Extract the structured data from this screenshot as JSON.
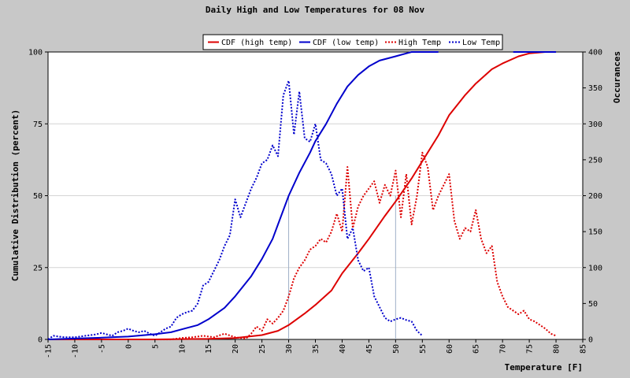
{
  "chart_data": {
    "type": "line",
    "title": "Daily High and Low Temperatures for 08 Nov",
    "xlabel": "Temperature [F]",
    "ylabel_left": "Cumulative Distribution (percent)",
    "ylabel_right": "Occurances",
    "xlim": [
      -15,
      85
    ],
    "ylim_left": [
      0,
      100
    ],
    "ylim_right": [
      0,
      400
    ],
    "x_ticks": [
      "-15",
      "-10",
      "-5",
      "0",
      "5",
      "10",
      "15",
      "20",
      "25",
      "30",
      "35",
      "40",
      "45",
      "50",
      "55",
      "60",
      "65",
      "70",
      "75",
      "80",
      "85"
    ],
    "y_ticks_left": [
      "0",
      "25",
      "50",
      "75",
      "100"
    ],
    "y_ticks_right": [
      "0",
      "50",
      "100",
      "150",
      "200",
      "250",
      "300",
      "350",
      "400"
    ],
    "grid": true,
    "legend_position": "top",
    "markers": [
      {
        "x": 30,
        "y": 50
      },
      {
        "x": 50,
        "y": 50
      }
    ],
    "series": [
      {
        "name": "CDF (high temp)",
        "axis": "left",
        "color": "#dd0000",
        "style": "solid",
        "points": [
          [
            -15,
            0
          ],
          [
            5,
            0
          ],
          [
            15,
            0.2
          ],
          [
            20,
            0.5
          ],
          [
            25,
            1.5
          ],
          [
            28,
            3
          ],
          [
            30,
            5
          ],
          [
            33,
            9
          ],
          [
            35,
            12
          ],
          [
            38,
            17
          ],
          [
            40,
            23
          ],
          [
            43,
            30
          ],
          [
            45,
            35
          ],
          [
            48,
            43
          ],
          [
            50,
            48
          ],
          [
            53,
            56
          ],
          [
            55,
            62
          ],
          [
            58,
            71
          ],
          [
            60,
            78
          ],
          [
            63,
            85
          ],
          [
            65,
            89
          ],
          [
            68,
            94
          ],
          [
            70,
            96
          ],
          [
            73,
            98.5
          ],
          [
            75,
            99.5
          ],
          [
            78,
            100
          ],
          [
            80,
            100
          ]
        ]
      },
      {
        "name": "CDF (low temp)",
        "axis": "left",
        "color": "#0000cc",
        "style": "solid",
        "points": [
          [
            -15,
            0
          ],
          [
            -10,
            0.3
          ],
          [
            -5,
            0.6
          ],
          [
            0,
            1
          ],
          [
            5,
            1.8
          ],
          [
            8,
            2.5
          ],
          [
            10,
            3.5
          ],
          [
            13,
            5
          ],
          [
            15,
            7
          ],
          [
            18,
            11
          ],
          [
            20,
            15
          ],
          [
            23,
            22
          ],
          [
            25,
            28
          ],
          [
            27,
            35
          ],
          [
            28,
            40
          ],
          [
            30,
            50
          ],
          [
            32,
            58
          ],
          [
            34,
            65
          ],
          [
            35,
            69
          ],
          [
            37,
            75
          ],
          [
            39,
            82
          ],
          [
            41,
            88
          ],
          [
            43,
            92
          ],
          [
            45,
            95
          ],
          [
            47,
            97
          ],
          [
            50,
            98.5
          ],
          [
            52,
            99.5
          ],
          [
            53,
            100
          ],
          [
            55,
            100
          ],
          [
            58,
            100
          ]
        ]
      },
      {
        "name": "High Temp",
        "axis": "right",
        "color": "#dd0000",
        "style": "dotted",
        "points": [
          [
            3,
            0
          ],
          [
            8,
            0
          ],
          [
            10,
            2
          ],
          [
            12,
            3
          ],
          [
            14,
            5
          ],
          [
            16,
            3
          ],
          [
            18,
            8
          ],
          [
            20,
            3
          ],
          [
            22,
            1
          ],
          [
            23,
            8
          ],
          [
            24,
            18
          ],
          [
            25,
            12
          ],
          [
            26,
            28
          ],
          [
            27,
            22
          ],
          [
            28,
            30
          ],
          [
            29,
            40
          ],
          [
            30,
            60
          ],
          [
            31,
            85
          ],
          [
            32,
            100
          ],
          [
            33,
            110
          ],
          [
            34,
            125
          ],
          [
            35,
            130
          ],
          [
            36,
            140
          ],
          [
            37,
            135
          ],
          [
            38,
            150
          ],
          [
            39,
            175
          ],
          [
            40,
            150
          ],
          [
            41,
            240
          ],
          [
            42,
            155
          ],
          [
            43,
            185
          ],
          [
            44,
            200
          ],
          [
            45,
            210
          ],
          [
            46,
            220
          ],
          [
            47,
            190
          ],
          [
            48,
            215
          ],
          [
            49,
            200
          ],
          [
            50,
            235
          ],
          [
            51,
            170
          ],
          [
            52,
            230
          ],
          [
            53,
            160
          ],
          [
            54,
            200
          ],
          [
            55,
            260
          ],
          [
            56,
            240
          ],
          [
            57,
            180
          ],
          [
            58,
            200
          ],
          [
            59,
            215
          ],
          [
            60,
            230
          ],
          [
            61,
            165
          ],
          [
            62,
            140
          ],
          [
            63,
            155
          ],
          [
            64,
            150
          ],
          [
            65,
            180
          ],
          [
            66,
            140
          ],
          [
            67,
            120
          ],
          [
            68,
            130
          ],
          [
            69,
            80
          ],
          [
            70,
            60
          ],
          [
            71,
            45
          ],
          [
            72,
            40
          ],
          [
            73,
            35
          ],
          [
            74,
            40
          ],
          [
            75,
            28
          ],
          [
            76,
            25
          ],
          [
            77,
            20
          ],
          [
            78,
            15
          ],
          [
            79,
            8
          ],
          [
            80,
            5
          ]
        ]
      },
      {
        "name": "Low Temp",
        "axis": "right",
        "color": "#0000cc",
        "style": "dotted",
        "points": [
          [
            -15,
            0
          ],
          [
            -14,
            5
          ],
          [
            -12,
            3
          ],
          [
            -10,
            3
          ],
          [
            -8,
            5
          ],
          [
            -6,
            7
          ],
          [
            -5,
            9
          ],
          [
            -4,
            7
          ],
          [
            -3,
            5
          ],
          [
            -2,
            10
          ],
          [
            -1,
            12
          ],
          [
            0,
            15
          ],
          [
            1,
            12
          ],
          [
            2,
            10
          ],
          [
            3,
            12
          ],
          [
            4,
            8
          ],
          [
            5,
            5
          ],
          [
            6,
            10
          ],
          [
            7,
            15
          ],
          [
            8,
            18
          ],
          [
            9,
            30
          ],
          [
            10,
            35
          ],
          [
            11,
            38
          ],
          [
            12,
            40
          ],
          [
            13,
            50
          ],
          [
            14,
            75
          ],
          [
            15,
            80
          ],
          [
            16,
            95
          ],
          [
            17,
            110
          ],
          [
            18,
            130
          ],
          [
            19,
            145
          ],
          [
            20,
            195
          ],
          [
            21,
            170
          ],
          [
            22,
            190
          ],
          [
            23,
            210
          ],
          [
            24,
            225
          ],
          [
            25,
            245
          ],
          [
            26,
            250
          ],
          [
            27,
            270
          ],
          [
            28,
            255
          ],
          [
            29,
            340
          ],
          [
            30,
            360
          ],
          [
            31,
            285
          ],
          [
            32,
            345
          ],
          [
            33,
            280
          ],
          [
            34,
            275
          ],
          [
            35,
            300
          ],
          [
            36,
            250
          ],
          [
            37,
            245
          ],
          [
            38,
            230
          ],
          [
            39,
            200
          ],
          [
            40,
            210
          ],
          [
            41,
            140
          ],
          [
            42,
            155
          ],
          [
            43,
            110
          ],
          [
            44,
            95
          ],
          [
            45,
            100
          ],
          [
            46,
            60
          ],
          [
            47,
            45
          ],
          [
            48,
            30
          ],
          [
            49,
            25
          ],
          [
            50,
            28
          ],
          [
            51,
            30
          ],
          [
            52,
            27
          ],
          [
            53,
            25
          ],
          [
            54,
            12
          ],
          [
            55,
            5
          ]
        ]
      }
    ]
  }
}
